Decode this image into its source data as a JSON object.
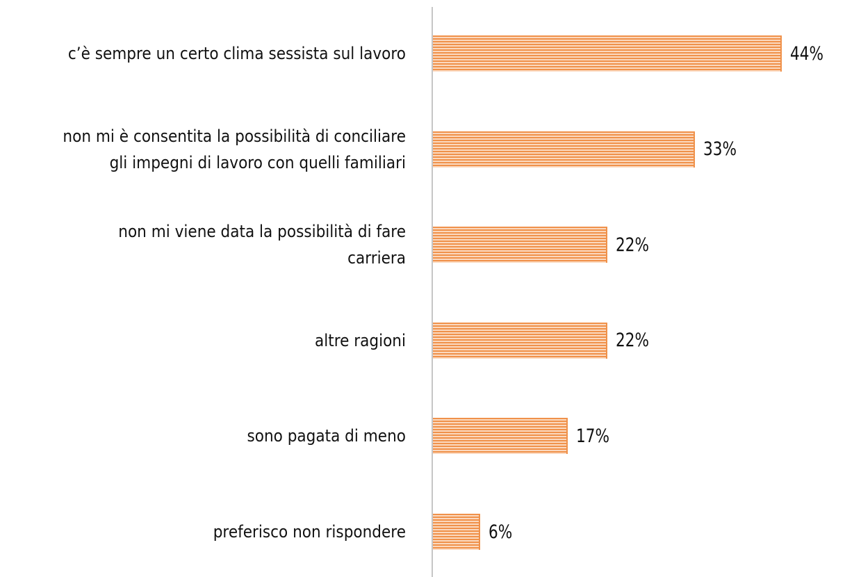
{
  "chart_data": {
    "type": "bar",
    "orientation": "horizontal",
    "color": "#f0914a",
    "categories": [
      "c’è sempre un certo clima sessista sul lavoro",
      "non mi è consentita la possibilità di conciliare\ngli impegni di lavoro con quelli familiari",
      "non mi viene data la possibilità di fare\ncarriera",
      "altre ragioni",
      "sono pagata di meno",
      "preferisco non rispondere"
    ],
    "values": [
      44,
      33,
      22,
      22,
      17,
      6
    ],
    "value_labels": [
      "44%",
      "33%",
      "22%",
      "22%",
      "17%",
      "6%"
    ]
  }
}
